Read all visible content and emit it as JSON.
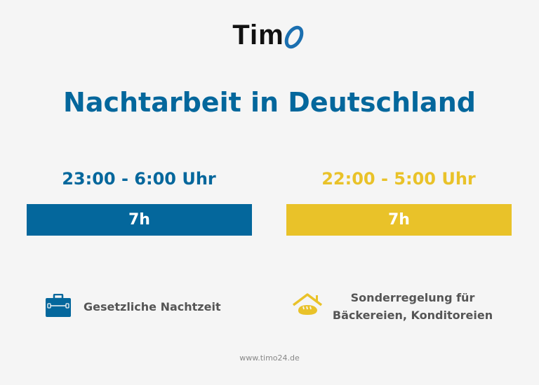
{
  "logo": {
    "text": "Tim",
    "accent_letter": "O"
  },
  "title": "Nachtarbeit in Deutschland",
  "colors": {
    "blue": "#04679c",
    "yellow": "#e9c229",
    "text": "#555555",
    "background": "#f5f5f5"
  },
  "left": {
    "time_range": "23:00 - 6:00 Uhr",
    "duration": "7h",
    "icon": "briefcase-icon",
    "label": "Gesetzliche Nachtzeit"
  },
  "right": {
    "time_range": "22:00 - 5:00 Uhr",
    "duration": "7h",
    "icon": "bakery-house-icon",
    "label_line1": "Sonderregelung für",
    "label_line2": "Bäckereien, Konditoreien"
  },
  "footer": "www.timo24.de"
}
